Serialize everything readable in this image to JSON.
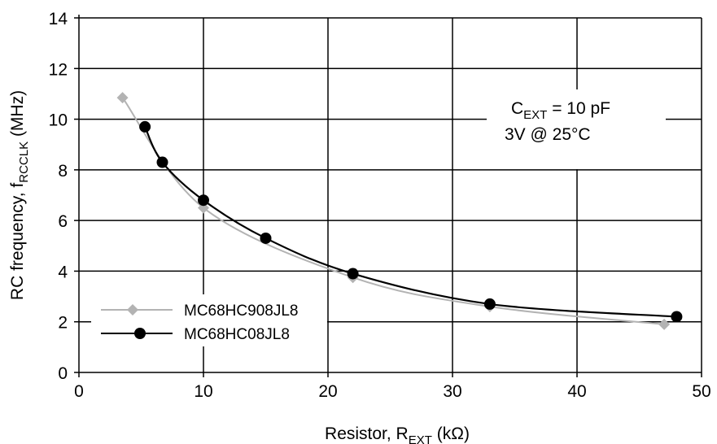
{
  "chart_data": {
    "type": "line",
    "xlabel": {
      "main": "Resistor, R",
      "sub": "EXT",
      "unit": " (kΩ)"
    },
    "ylabel": {
      "main": "RC frequency, f",
      "sub": "RCCLK",
      "unit": " (MHz)"
    },
    "xlim": [
      0,
      50
    ],
    "ylim": [
      0,
      14
    ],
    "xticks": [
      "0",
      "10",
      "20",
      "30",
      "40",
      "50"
    ],
    "yticks": [
      "0",
      "2",
      "4",
      "6",
      "8",
      "10",
      "12",
      "14"
    ],
    "grid": true,
    "legend_position": "bottom-left",
    "annotation": {
      "line1_main": "C",
      "line1_sub": "EXT",
      "line1_rest": " = 10 pF",
      "line2": "3V @ 25°C"
    },
    "series": [
      {
        "name": "MC68HC908JL8",
        "marker": "diamond",
        "color": "#b3b3b3",
        "x": [
          3.5,
          10,
          22,
          33,
          47
        ],
        "y": [
          10.85,
          6.5,
          3.75,
          2.6,
          1.9
        ]
      },
      {
        "name": "MC68HC08JL8",
        "marker": "circle",
        "color": "#000000",
        "x": [
          5.3,
          6.7,
          10,
          15,
          22,
          33,
          48
        ],
        "y": [
          9.7,
          8.3,
          6.8,
          5.3,
          3.9,
          2.7,
          2.2
        ]
      }
    ],
    "fit_curve": {
      "color": "#000000",
      "x_range": [
        3.5,
        48
      ]
    }
  }
}
